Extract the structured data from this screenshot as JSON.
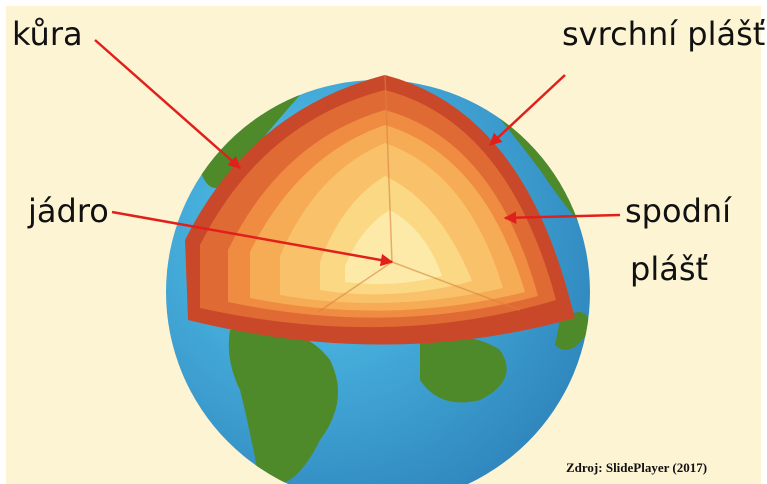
{
  "labels": {
    "crust": "kůra",
    "upper_mantle": "svrchní plášť",
    "core": "jádro",
    "lower_mantle": [
      "spodní",
      "plášť"
    ]
  },
  "source": "Zdroj: SlidePlayer (2017)"
}
